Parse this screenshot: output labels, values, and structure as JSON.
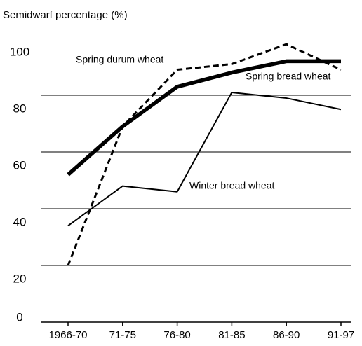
{
  "chart_data": {
    "type": "line",
    "y_axis_label": "Semidwarf percentage (%)",
    "categories": [
      "1966-70",
      "71-75",
      "76-80",
      "81-85",
      "86-90",
      "91-97"
    ],
    "series": [
      {
        "name": "Spring durum wheat",
        "color": "#000000",
        "dash": "dashed",
        "width": 3,
        "values": [
          20,
          69,
          89,
          91,
          98,
          89
        ]
      },
      {
        "name": "Spring bread wheat",
        "color": "#000000",
        "dash": "solid",
        "width": 5.5,
        "values": [
          52,
          69,
          83,
          88,
          92,
          92
        ]
      },
      {
        "name": "Winter bread wheat",
        "color": "#000000",
        "dash": "solid",
        "width": 2,
        "values": [
          34,
          48,
          46,
          81,
          79,
          75
        ]
      }
    ],
    "ylim": [
      0,
      100
    ],
    "yticks": [
      0,
      20,
      40,
      60,
      80,
      100
    ],
    "grid": true
  }
}
